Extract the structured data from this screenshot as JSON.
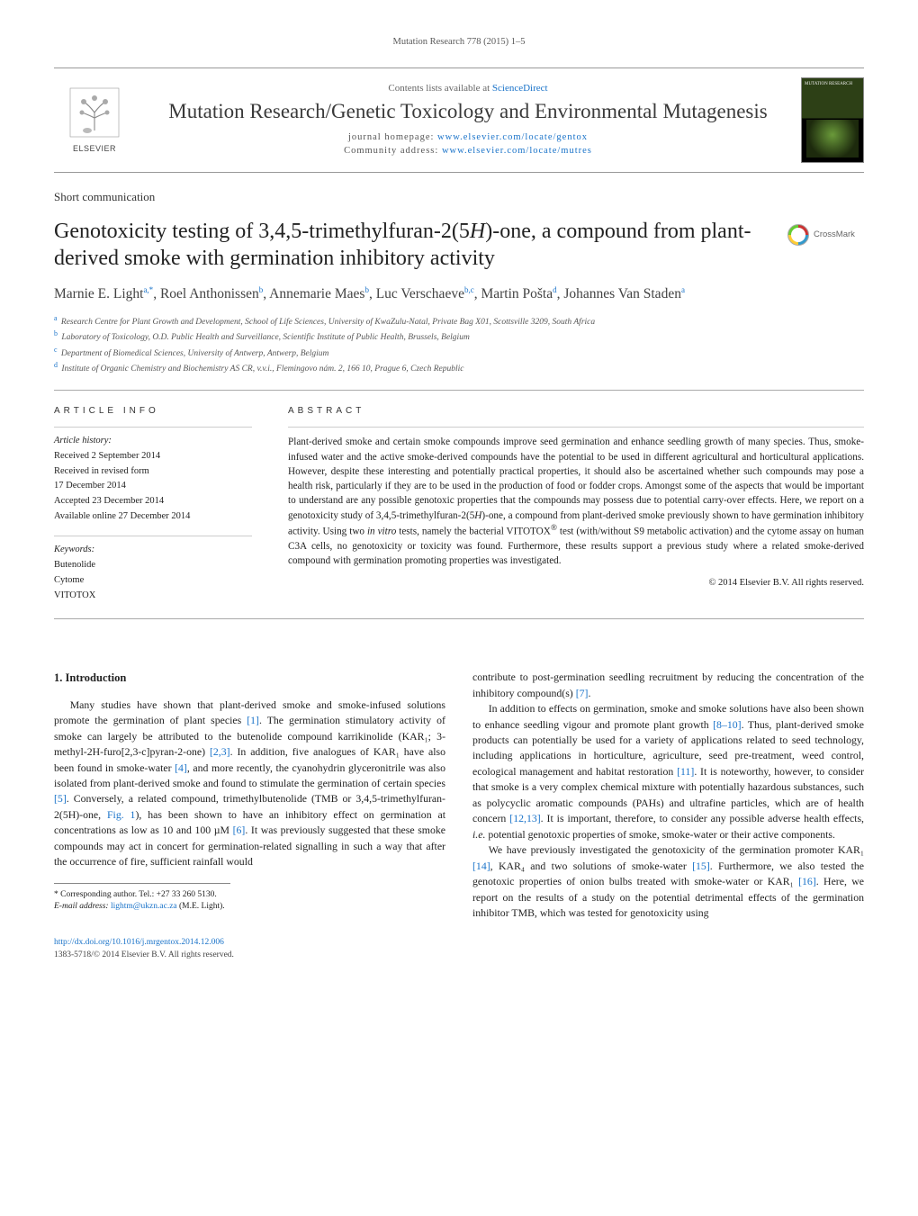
{
  "running_head": "Mutation Research 778 (2015) 1–5",
  "header": {
    "sd_prefix": "Contents lists available at ",
    "sd_link": "ScienceDirect",
    "journal_title": "Mutation Research/Genetic Toxicology and Environmental Mutagenesis",
    "homepage_label": "journal homepage: ",
    "homepage_url": "www.elsevier.com/locate/gentox",
    "community_label": "Community address: ",
    "community_url": "www.elsevier.com/locate/mutres",
    "publisher_wordmark": "ELSEVIER",
    "cover_text": "MUTATION RESEARCH"
  },
  "article_type": "Short communication",
  "title_pre": "Genotoxicity testing of 3,4,5-trimethylfuran-2(5",
  "title_ital": "H",
  "title_post": ")-one, a compound from plant-derived smoke with germination inhibitory activity",
  "crossmark": "CrossMark",
  "authors_html": "Marnie E. Light<sup>a,*</sup>, Roel Anthonissen<sup>b</sup>, Annemarie Maes<sup>b</sup>, Luc Verschaeve<sup>b,c</sup>, Martin Pošta<sup>d</sup>, Johannes Van Staden<sup>a</sup>",
  "affiliations": [
    {
      "sup": "a",
      "text": "Research Centre for Plant Growth and Development, School of Life Sciences, University of KwaZulu-Natal, Private Bag X01, Scottsville 3209, South Africa"
    },
    {
      "sup": "b",
      "text": "Laboratory of Toxicology, O.D. Public Health and Surveillance, Scientific Institute of Public Health, Brussels, Belgium"
    },
    {
      "sup": "c",
      "text": "Department of Biomedical Sciences, University of Antwerp, Antwerp, Belgium"
    },
    {
      "sup": "d",
      "text": "Institute of Organic Chemistry and Biochemistry AS CR, v.v.i., Flemingovo nám. 2, 166 10, Prague 6, Czech Republic"
    }
  ],
  "article_info": {
    "head": "ARTICLE INFO",
    "history_label": "Article history:",
    "history": [
      "Received 2 September 2014",
      "Received in revised form",
      "17 December 2014",
      "Accepted 23 December 2014",
      "Available online 27 December 2014"
    ],
    "keywords_label": "Keywords:",
    "keywords": [
      "Butenolide",
      "Cytome",
      "VITOTOX"
    ]
  },
  "abstract": {
    "head": "ABSTRACT",
    "text": "Plant-derived smoke and certain smoke compounds improve seed germination and enhance seedling growth of many species. Thus, smoke-infused water and the active smoke-derived compounds have the potential to be used in different agricultural and horticultural applications. However, despite these interesting and potentially practical properties, it should also be ascertained whether such compounds may pose a health risk, particularly if they are to be used in the production of food or fodder crops. Amongst some of the aspects that would be important to understand are any possible genotoxic properties that the compounds may possess due to potential carry-over effects. Here, we report on a genotoxicity study of 3,4,5-trimethylfuran-2(5H)-one, a compound from plant-derived smoke previously shown to have germination inhibitory activity. Using two in vitro tests, namely the bacterial VITOTOX® test (with/without S9 metabolic activation) and the cytome assay on human C3A cells, no genotoxicity or toxicity was found. Furthermore, these results support a previous study where a related smoke-derived compound with germination promoting properties was investigated.",
    "copyright": "© 2014 Elsevier B.V. All rights reserved."
  },
  "body": {
    "section_head": "1. Introduction",
    "p1": "Many studies have shown that plant-derived smoke and smoke-infused solutions promote the germination of plant species [1]. The germination stimulatory activity of smoke can largely be attributed to the butenolide compound karrikinolide (KAR₁; 3-methyl-2H-furo[2,3-c]pyran-2-one) [2,3]. In addition, five analogues of KAR₁ have also been found in smoke-water [4], and more recently, the cyanohydrin glyceronitrile was also isolated from plant-derived smoke and found to stimulate the germination of certain species [5]. Conversely, a related compound, trimethylbutenolide (TMB or 3,4,5-trimethylfuran-2(5H)-one, Fig. 1), has been shown to have an inhibitory effect on germination at concentrations as low as 10 and 100 µM [6]. It was previously suggested that these smoke compounds may act in concert for germination-related signalling in such a way that after the occurrence of fire, sufficient rainfall would",
    "p2": "contribute to post-germination seedling recruitment by reducing the concentration of the inhibitory compound(s) [7].",
    "p3": "In addition to effects on germination, smoke and smoke solutions have also been shown to enhance seedling vigour and promote plant growth [8–10]. Thus, plant-derived smoke products can potentially be used for a variety of applications related to seed technology, including applications in horticulture, agriculture, seed pre-treatment, weed control, ecological management and habitat restoration [11]. It is noteworthy, however, to consider that smoke is a very complex chemical mixture with potentially hazardous substances, such as polycyclic aromatic compounds (PAHs) and ultrafine particles, which are of health concern [12,13]. It is important, therefore, to consider any possible adverse health effects, i.e. potential genotoxic properties of smoke, smoke-water or their active components.",
    "p4": "We have previously investigated the genotoxicity of the germination promoter KAR₁ [14], KAR₄ and two solutions of smoke-water [15]. Furthermore, we also tested the genotoxic properties of onion bulbs treated with smoke-water or KAR₁ [16]. Here, we report on the results of a study on the potential detrimental effects of the germination inhibitor TMB, which was tested for genotoxicity using"
  },
  "footnotes": {
    "corr_label": "* Corresponding author. Tel.: +27 33 260 5130.",
    "email_label": "E-mail address: ",
    "email": "lightm@ukzn.ac.za",
    "email_who": " (M.E. Light)."
  },
  "footer": {
    "doi": "http://dx.doi.org/10.1016/j.mrgentox.2014.12.006",
    "issn_line": "1383-5718/© 2014 Elsevier B.V. All rights reserved."
  },
  "refs": {
    "r1": "[1]",
    "r23": "[2,3]",
    "r4": "[4]",
    "r5": "[5]",
    "r6": "[6]",
    "fig1": "Fig. 1",
    "r7": "[7]",
    "r810": "[8–10]",
    "r11": "[11]",
    "r1213": "[12,13]",
    "r14": "[14]",
    "r15": "[15]",
    "r16": "[16]"
  },
  "colors": {
    "link": "#1a73c9",
    "text": "#222",
    "muted": "#666",
    "rule": "#aaa"
  }
}
